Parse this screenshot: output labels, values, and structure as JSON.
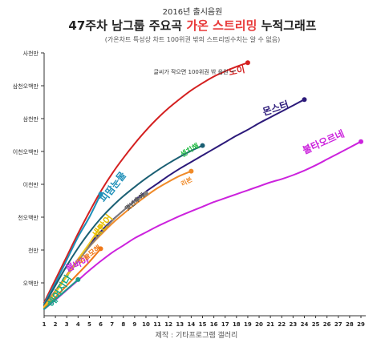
{
  "chart_data": {
    "type": "line",
    "supertitle": "2016년 출시음원",
    "title_pre": "47주차 남그룹 주요곡 ",
    "title_highlight": "가온 스트리밍",
    "title_post": " 누적그래프",
    "subtitle": "(가온차트 특성상 차트 100위권 밖의 스트리밍수치는 알 수 없음)",
    "source": "제작 : 기타프로그램 갤러리",
    "annotation": "글씨가 작으면 100위권 밖 음원",
    "xlabel": "",
    "ylabel": "",
    "x_ticks": [
      1,
      2,
      3,
      4,
      5,
      6,
      7,
      8,
      9,
      10,
      11,
      12,
      13,
      14,
      15,
      16,
      17,
      18,
      19,
      20,
      21,
      22,
      23,
      24,
      25,
      26,
      27,
      28,
      29
    ],
    "xlim": [
      1,
      29
    ],
    "ylim": [
      0,
      40000000
    ],
    "y_ticks": [
      {
        "value": 5000000,
        "label": "오백만"
      },
      {
        "value": 10000000,
        "label": "천만"
      },
      {
        "value": 15000000,
        "label": "천오백만"
      },
      {
        "value": 20000000,
        "label": "이천만"
      },
      {
        "value": 25000000,
        "label": "이천오백만"
      },
      {
        "value": 30000000,
        "label": "삼천만"
      },
      {
        "value": 35000000,
        "label": "삼천오백만"
      },
      {
        "value": 40000000,
        "label": "사천만"
      }
    ],
    "grid": false,
    "series": [
      {
        "name": "노이",
        "color": "#d42020",
        "label_color": "#d42020",
        "x": [
          1,
          2,
          3,
          4,
          5,
          6,
          7,
          8,
          9,
          10,
          11,
          12,
          13,
          14,
          15,
          16,
          17,
          18,
          19
        ],
        "values": [
          2000000,
          5500000,
          9000000,
          12500000,
          15800000,
          18900000,
          21600000,
          24000000,
          26200000,
          28200000,
          30000000,
          31600000,
          33000000,
          34300000,
          35400000,
          36400000,
          37200000,
          37900000,
          38500000
        ]
      },
      {
        "name": "몬스터",
        "color": "#2c1a7a",
        "label_color": "#2c1a7a",
        "x": [
          1,
          2,
          3,
          4,
          5,
          6,
          7,
          8,
          9,
          10,
          11,
          12,
          13,
          14,
          15,
          16,
          17,
          18,
          19,
          20,
          21,
          22,
          23,
          24
        ],
        "values": [
          1500000,
          3800000,
          6200000,
          8600000,
          10800000,
          12800000,
          14500000,
          16000000,
          17500000,
          18900000,
          20100000,
          21300000,
          22400000,
          23400000,
          24400000,
          25400000,
          26400000,
          27400000,
          28300000,
          29300000,
          30200000,
          31100000,
          32000000,
          32900000
        ]
      },
      {
        "name": "붐바야",
        "color": "#cc22dd",
        "label_color": "#cc22dd",
        "x": [
          1,
          2,
          3,
          4,
          5,
          6,
          7,
          8,
          9,
          10,
          11,
          12,
          13,
          14,
          15,
          16,
          17,
          18,
          19,
          20,
          21,
          22,
          23,
          24,
          25,
          26,
          27,
          28,
          29
        ],
        "values": [
          1000000,
          2400000,
          3900000,
          5400000,
          6900000,
          8300000,
          9600000,
          10700000,
          11800000,
          12700000,
          13600000,
          14400000,
          15200000,
          15900000,
          16600000,
          17300000,
          17900000,
          18500000,
          19100000,
          19700000,
          20300000,
          20800000,
          21400000,
          22100000,
          22900000,
          23800000,
          24700000,
          25600000,
          26500000
        ]
      },
      {
        "name": "불타오르네",
        "color": "#cc22dd",
        "label_color": "#cc22dd",
        "x": [
          29
        ],
        "values": [
          26500000
        ],
        "label_only": true
      },
      {
        "name": "피땀눈물",
        "color": "#1d8fb8",
        "label_color": "#1d8fb8",
        "x": [
          1,
          2,
          3,
          4,
          5,
          6
        ],
        "values": [
          1800000,
          5000000,
          8500000,
          12000000,
          15000000,
          18500000
        ]
      },
      {
        "name": "센치해",
        "color": "#1a5f73",
        "label_color": "#22bb44",
        "x": [
          1,
          2,
          3,
          4,
          5,
          6,
          7,
          8,
          9,
          10,
          11,
          12,
          13,
          14,
          15
        ],
        "values": [
          1600000,
          4600000,
          7600000,
          10300000,
          12700000,
          14800000,
          16600000,
          18200000,
          19600000,
          20900000,
          22100000,
          23200000,
          24200000,
          25100000,
          25900000
        ]
      },
      {
        "name": "리본",
        "color": "#f08a28",
        "label_color": "#f08a28",
        "x": [
          1,
          2,
          3,
          4,
          5,
          6,
          7,
          8,
          9,
          10,
          11,
          12,
          13,
          14
        ],
        "values": [
          1400000,
          3800000,
          6200000,
          8500000,
          10500000,
          12300000,
          14000000,
          15500000,
          16900000,
          18200000,
          19400000,
          20400000,
          21300000,
          22000000
        ]
      },
      {
        "name": "몇년후에",
        "color": "#808080",
        "label_color": "#555555",
        "x": [
          1,
          2,
          3,
          4,
          5,
          6,
          7,
          8,
          9,
          10
        ],
        "values": [
          1200000,
          3500000,
          6000000,
          8300000,
          10500000,
          12500000,
          14400000,
          16000000,
          17400000,
          18600000
        ]
      },
      {
        "name": "세단어",
        "color": "#f0c820",
        "label_color": "#e8c000",
        "x": [
          1,
          2,
          3,
          4,
          5,
          6
        ],
        "values": [
          1300000,
          3500000,
          6000000,
          8600000,
          11000000,
          13600000
        ]
      },
      {
        "name": "오늘모해",
        "color": "#f07818",
        "label_color": "#f07818",
        "x": [
          1,
          2,
          3,
          4,
          5,
          6
        ],
        "values": [
          1100000,
          2800000,
          4600000,
          6400000,
          8200000,
          10200000
        ]
      },
      {
        "name": "헤어지다",
        "color": "#1a9a8a",
        "label_color": "#14a888",
        "x": [
          1,
          2,
          3,
          4
        ],
        "values": [
          1000000,
          2500000,
          4000000,
          5500000
        ]
      }
    ]
  }
}
